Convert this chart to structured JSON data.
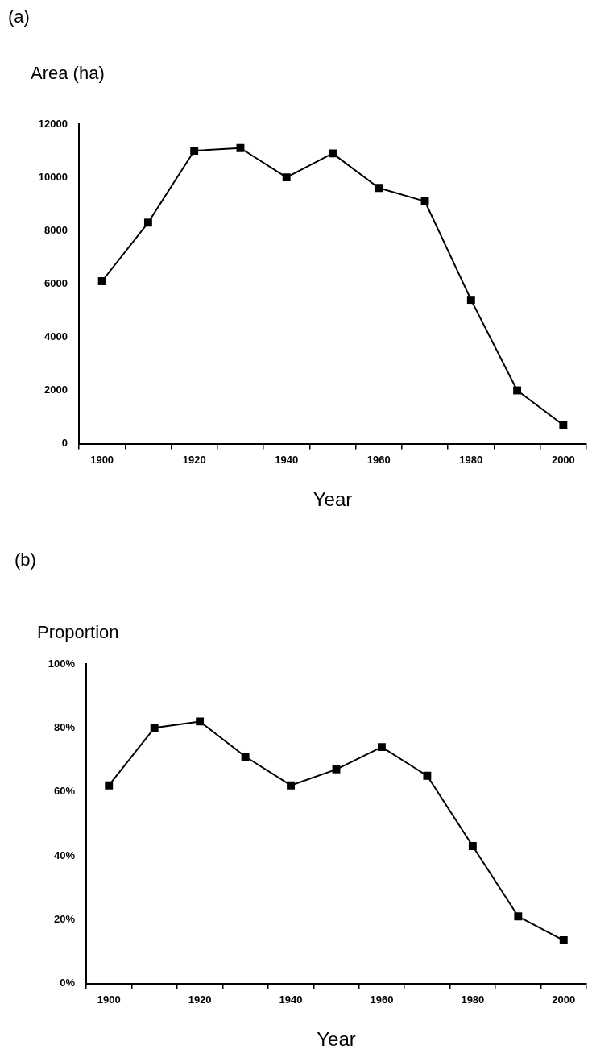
{
  "chart_data": [
    {
      "type": "line",
      "title": "(a)",
      "ylabel": "Area (ha)",
      "xlabel": "Year",
      "categories": [
        "1900",
        null,
        "1920",
        null,
        "1940",
        null,
        "1960",
        null,
        "1980",
        null,
        "2000"
      ],
      "series": [
        {
          "color": "#000000",
          "values": [
            6100,
            8300,
            11000,
            11100,
            10000,
            10900,
            9600,
            9100,
            5400,
            2000,
            700
          ]
        }
      ],
      "ylim": [
        0,
        12000
      ],
      "yticks": [
        0,
        2000,
        4000,
        6000,
        8000,
        10000,
        12000
      ],
      "marker": "square"
    },
    {
      "type": "line",
      "title": "(b)",
      "ylabel": "Proportion",
      "xlabel": "Year",
      "categories": [
        "1900",
        null,
        "1920",
        null,
        "1940",
        null,
        "1960",
        null,
        "1980",
        null,
        "2000"
      ],
      "series": [
        {
          "color": "#000000",
          "values": [
            62,
            80,
            82,
            71,
            62,
            67,
            74,
            65,
            43,
            21,
            13.5
          ]
        }
      ],
      "ylim": [
        0,
        100
      ],
      "yticks": [
        {
          "value": 0,
          "label": "0%"
        },
        {
          "value": 20,
          "label": "20%"
        },
        {
          "value": 40,
          "label": "40%"
        },
        {
          "value": 60,
          "label": "60%"
        },
        {
          "value": 80,
          "label": "80%"
        },
        {
          "value": 100,
          "label": "100%"
        }
      ],
      "marker": "square"
    }
  ]
}
